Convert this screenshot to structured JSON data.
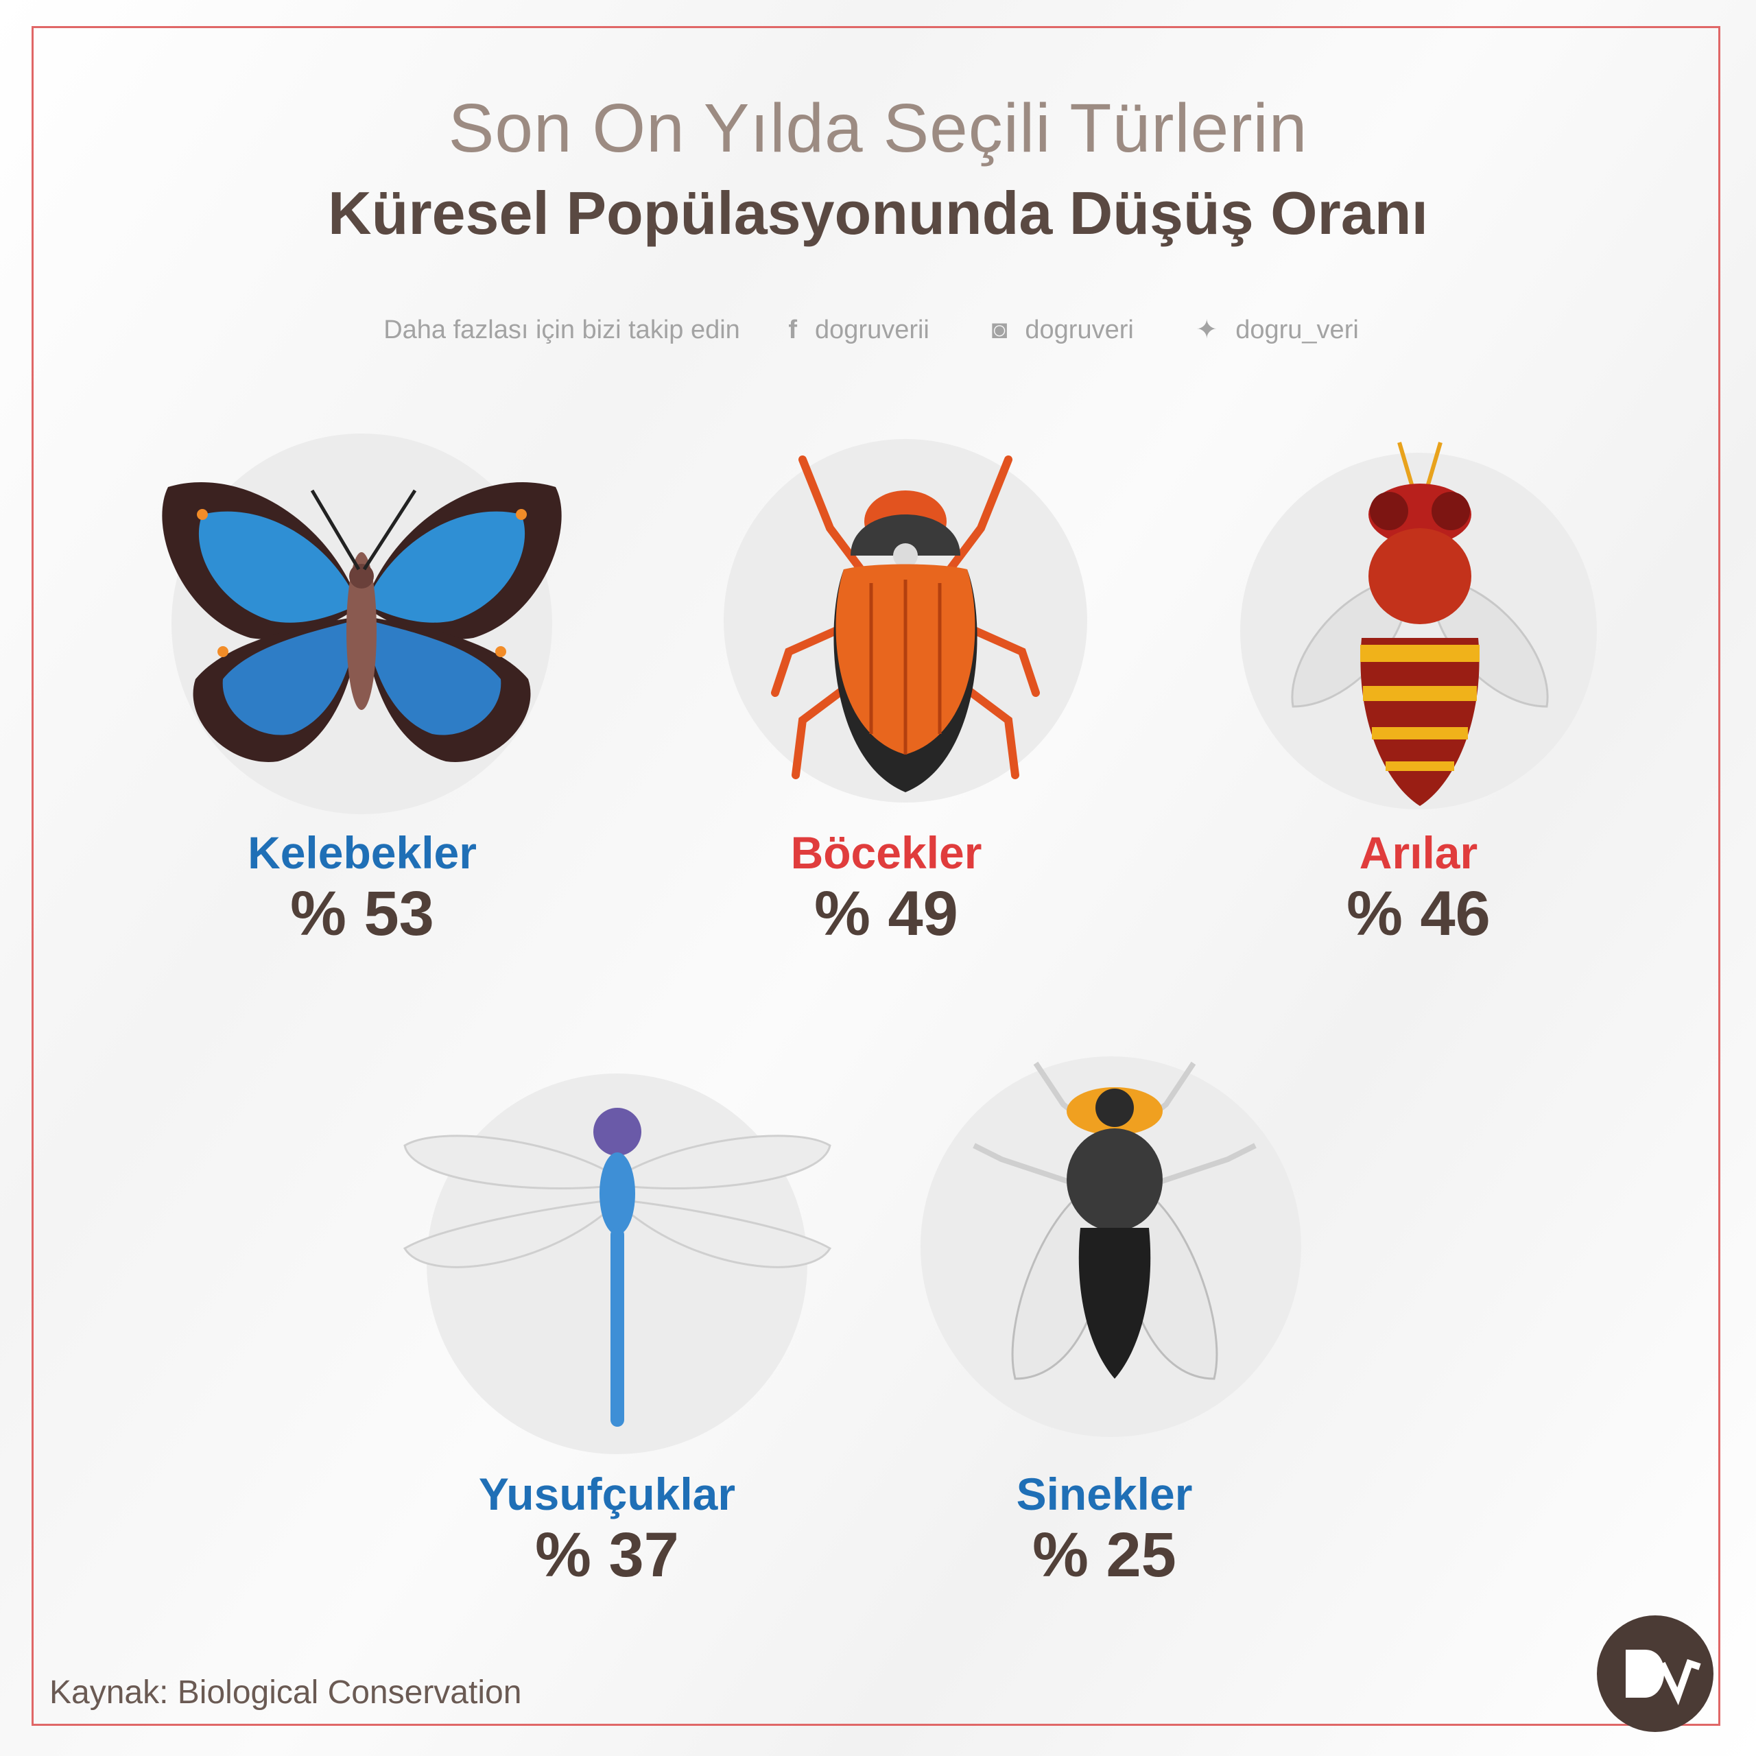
{
  "title": {
    "line1": "Son On Yılda Seçili Türlerin",
    "line2": "Küresel Popülasyonunda Düşüş Oranı"
  },
  "follow": {
    "text": "Daha fazlası için bizi takip edin",
    "facebook": "dogruverii",
    "instagram": "dogruveri",
    "twitter": "dogru_veri"
  },
  "items": [
    {
      "name": "Kelebekler",
      "value": "% 53",
      "color": "#1f6fb6"
    },
    {
      "name": "Böcekler",
      "value": "% 49",
      "color": "#e03c3c"
    },
    {
      "name": "Arılar",
      "value": "% 46",
      "color": "#e03c3c"
    },
    {
      "name": "Yusufçuklar",
      "value": "% 37",
      "color": "#1f6fb6"
    },
    {
      "name": "Sinekler",
      "value": "% 25",
      "color": "#1f6fb6"
    }
  ],
  "source": "Kaynak: Biological Conservation",
  "logo": {
    "text": "DV",
    "icon": "dv-logo-icon"
  },
  "colors": {
    "border": "#e06767",
    "title_light": "#9c8b82",
    "title_dark": "#5a4942"
  }
}
